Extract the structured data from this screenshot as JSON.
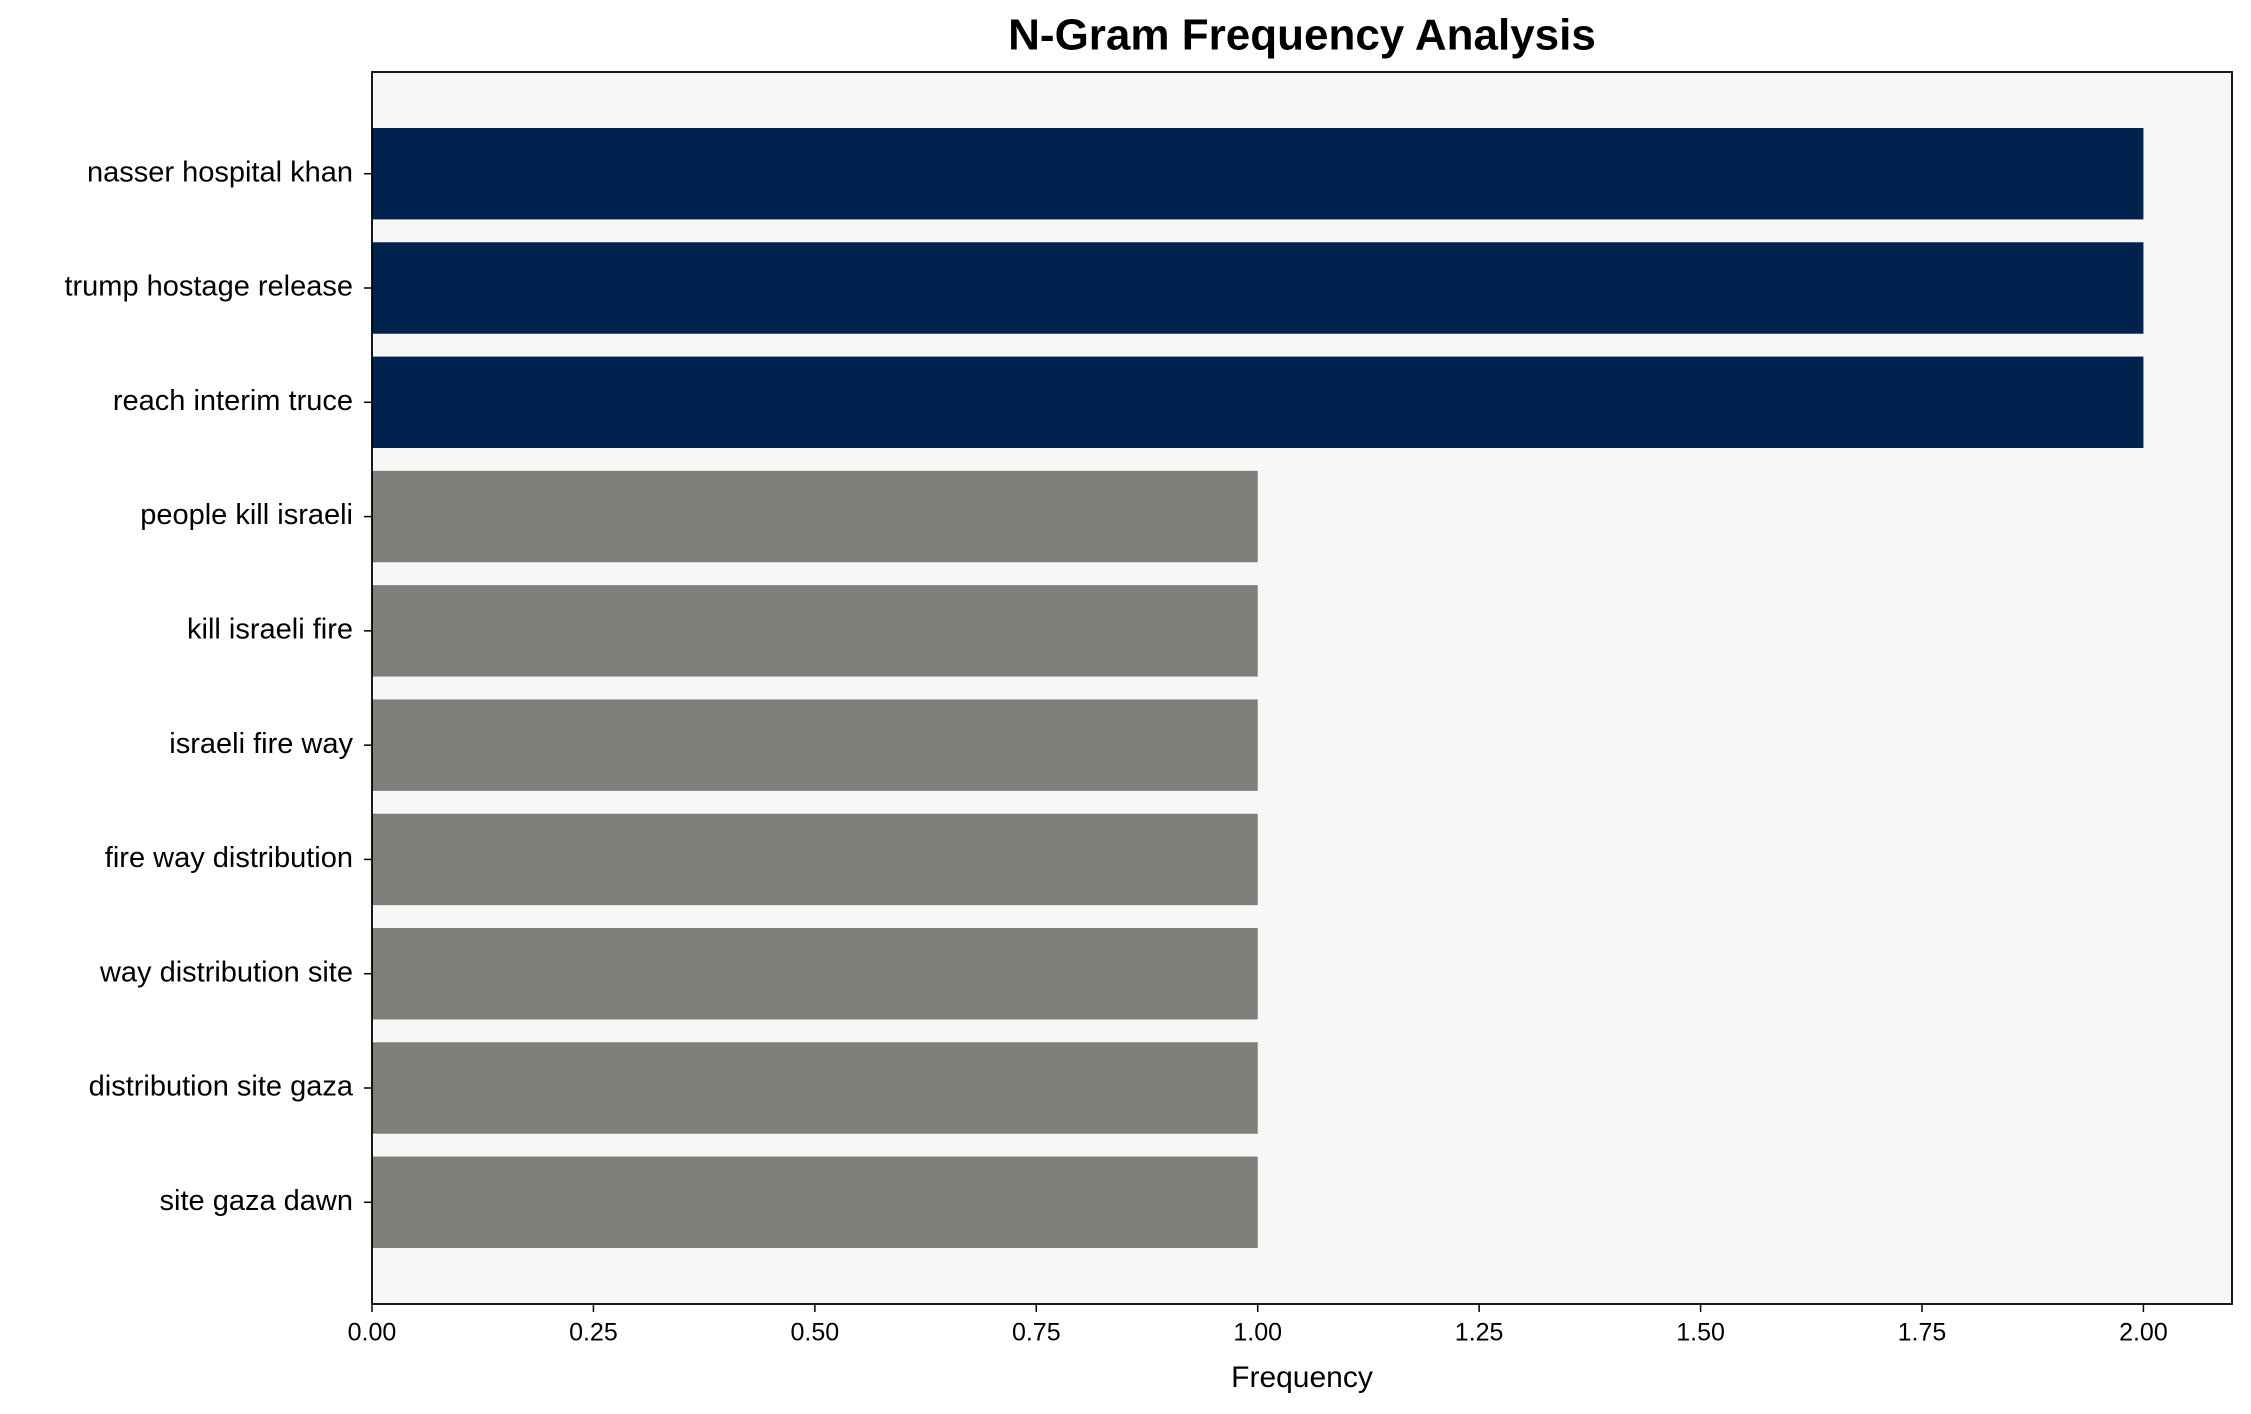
{
  "chart_data": {
    "type": "barh",
    "title": "N-Gram Frequency Analysis",
    "xlabel": "Frequency",
    "categories": [
      "nasser hospital khan",
      "trump hostage release",
      "reach interim truce",
      "people kill israeli",
      "kill israeli fire",
      "israeli fire way",
      "fire way distribution",
      "way distribution site",
      "distribution site gaza",
      "site gaza dawn"
    ],
    "values": [
      2,
      2,
      2,
      1,
      1,
      1,
      1,
      1,
      1,
      1
    ],
    "colors": [
      "#00224e",
      "#00224e",
      "#00224e",
      "#7f7f7a",
      "#7f7f7a",
      "#7f7f7a",
      "#7f7f7a",
      "#7f7f7a",
      "#7f7f7a",
      "#7f7f7a"
    ],
    "xlim": [
      0,
      2.1
    ],
    "xticks": [
      {
        "value": 0,
        "label": "0.00"
      },
      0.25,
      {
        "value": 0.5,
        "label": "0.50"
      },
      0.75,
      {
        "value": 1,
        "label": "1.00"
      },
      1.25,
      {
        "value": 1.5,
        "label": "1.50"
      },
      1.75,
      {
        "value": 2,
        "label": "2.00"
      }
    ],
    "background": "#f7f7f7"
  }
}
